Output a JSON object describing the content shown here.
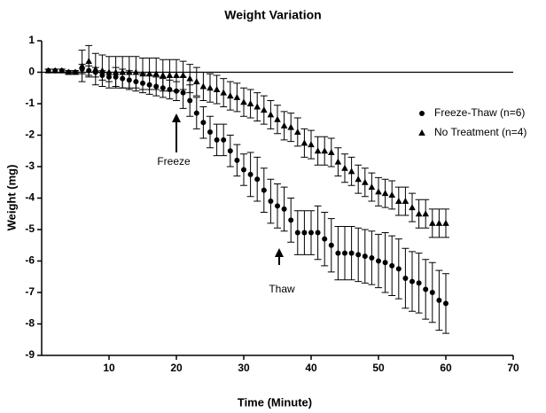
{
  "chart_data": {
    "type": "scatter",
    "title": "Weight Variation",
    "x_label": "Time (Minute)",
    "y_label": "Weight (mg)",
    "x": [
      1,
      2,
      3,
      4,
      5,
      6,
      7,
      8,
      9,
      10,
      11,
      12,
      13,
      14,
      15,
      16,
      17,
      18,
      19,
      20,
      21,
      22,
      23,
      24,
      25,
      26,
      27,
      28,
      29,
      30,
      31,
      32,
      33,
      34,
      35,
      36,
      37,
      38,
      39,
      40,
      41,
      42,
      43,
      44,
      45,
      46,
      47,
      48,
      49,
      50,
      51,
      52,
      53,
      54,
      55,
      56,
      57,
      58,
      59,
      60
    ],
    "series": [
      {
        "name": "Freeze-Thaw (n=6)",
        "color": "#000000",
        "marker": "circle",
        "values": [
          0.05,
          0.05,
          0.05,
          0,
          0,
          0.1,
          0.05,
          0,
          -0.1,
          -0.15,
          -0.15,
          -0.2,
          -0.25,
          -0.3,
          -0.35,
          -0.4,
          -0.45,
          -0.5,
          -0.55,
          -0.6,
          -0.65,
          -0.9,
          -1.3,
          -1.6,
          -1.9,
          -2.15,
          -2.15,
          -2.5,
          -2.8,
          -3.1,
          -3.25,
          -3.4,
          -3.75,
          -4.1,
          -4.25,
          -4.35,
          -4.7,
          -5.1,
          -5.1,
          -5.1,
          -5.1,
          -5.3,
          -5.5,
          -5.75,
          -5.75,
          -5.75,
          -5.8,
          -5.85,
          -5.9,
          -6,
          -6.05,
          -6.15,
          -6.25,
          -6.55,
          -6.65,
          -6.7,
          -6.9,
          -7,
          -7.25,
          -7.35
        ],
        "errors": [
          0.05,
          0.05,
          0.05,
          0.05,
          0.05,
          0.15,
          0.15,
          0.15,
          0.15,
          0.15,
          0.3,
          0.3,
          0.3,
          0.3,
          0.3,
          0.3,
          0.3,
          0.3,
          0.3,
          0.3,
          0.5,
          0.5,
          0.5,
          0.5,
          0.5,
          0.5,
          0.5,
          0.5,
          0.5,
          0.5,
          0.7,
          0.7,
          0.7,
          0.7,
          0.7,
          0.7,
          0.7,
          0.7,
          0.7,
          0.7,
          0.85,
          0.85,
          0.85,
          0.85,
          0.85,
          0.85,
          0.85,
          0.85,
          0.85,
          0.85,
          0.95,
          0.95,
          0.95,
          0.95,
          0.95,
          0.95,
          0.95,
          0.95,
          0.95,
          0.95
        ]
      },
      {
        "name": "No Treatment (n=4)",
        "color": "#000000",
        "marker": "triangle",
        "values": [
          0.05,
          0.05,
          0.05,
          0,
          0,
          0.2,
          0.35,
          0.1,
          0.05,
          0,
          0,
          0,
          0,
          0,
          -0.05,
          -0.05,
          -0.05,
          -0.1,
          -0.1,
          -0.1,
          -0.1,
          -0.2,
          -0.3,
          -0.45,
          -0.5,
          -0.55,
          -0.65,
          -0.75,
          -0.8,
          -0.95,
          -1,
          -1.1,
          -1.2,
          -1.35,
          -1.5,
          -1.7,
          -1.75,
          -1.9,
          -2.25,
          -2.3,
          -2.5,
          -2.5,
          -2.55,
          -2.85,
          -3.05,
          -3.15,
          -3.4,
          -3.5,
          -3.65,
          -3.8,
          -3.85,
          -3.9,
          -4.1,
          -4.1,
          -4.3,
          -4.5,
          -4.5,
          -4.8,
          -4.8,
          -4.8
        ],
        "errors": [
          0.05,
          0.05,
          0.05,
          0.05,
          0.05,
          0.5,
          0.5,
          0.5,
          0.5,
          0.5,
          0.5,
          0.5,
          0.5,
          0.5,
          0.5,
          0.5,
          0.5,
          0.5,
          0.5,
          0.5,
          0.45,
          0.45,
          0.45,
          0.45,
          0.45,
          0.45,
          0.45,
          0.45,
          0.45,
          0.45,
          0.45,
          0.45,
          0.45,
          0.45,
          0.45,
          0.45,
          0.45,
          0.45,
          0.45,
          0.45,
          0.45,
          0.45,
          0.45,
          0.45,
          0.45,
          0.45,
          0.45,
          0.45,
          0.45,
          0.45,
          0.45,
          0.45,
          0.45,
          0.45,
          0.45,
          0.45,
          0.45,
          0.45,
          0.45,
          0.45
        ]
      }
    ],
    "annotations": [
      "Freeze",
      "Thaw"
    ],
    "xlim": [
      0,
      70
    ],
    "xticks": [
      10,
      20,
      30,
      40,
      50,
      60,
      70
    ],
    "ylim": [
      -9,
      1
    ],
    "yticks": [
      1,
      0,
      -1,
      -2,
      -3,
      -4,
      -5,
      -6,
      -7,
      -8,
      -9
    ],
    "grid": false,
    "legend": "right"
  }
}
